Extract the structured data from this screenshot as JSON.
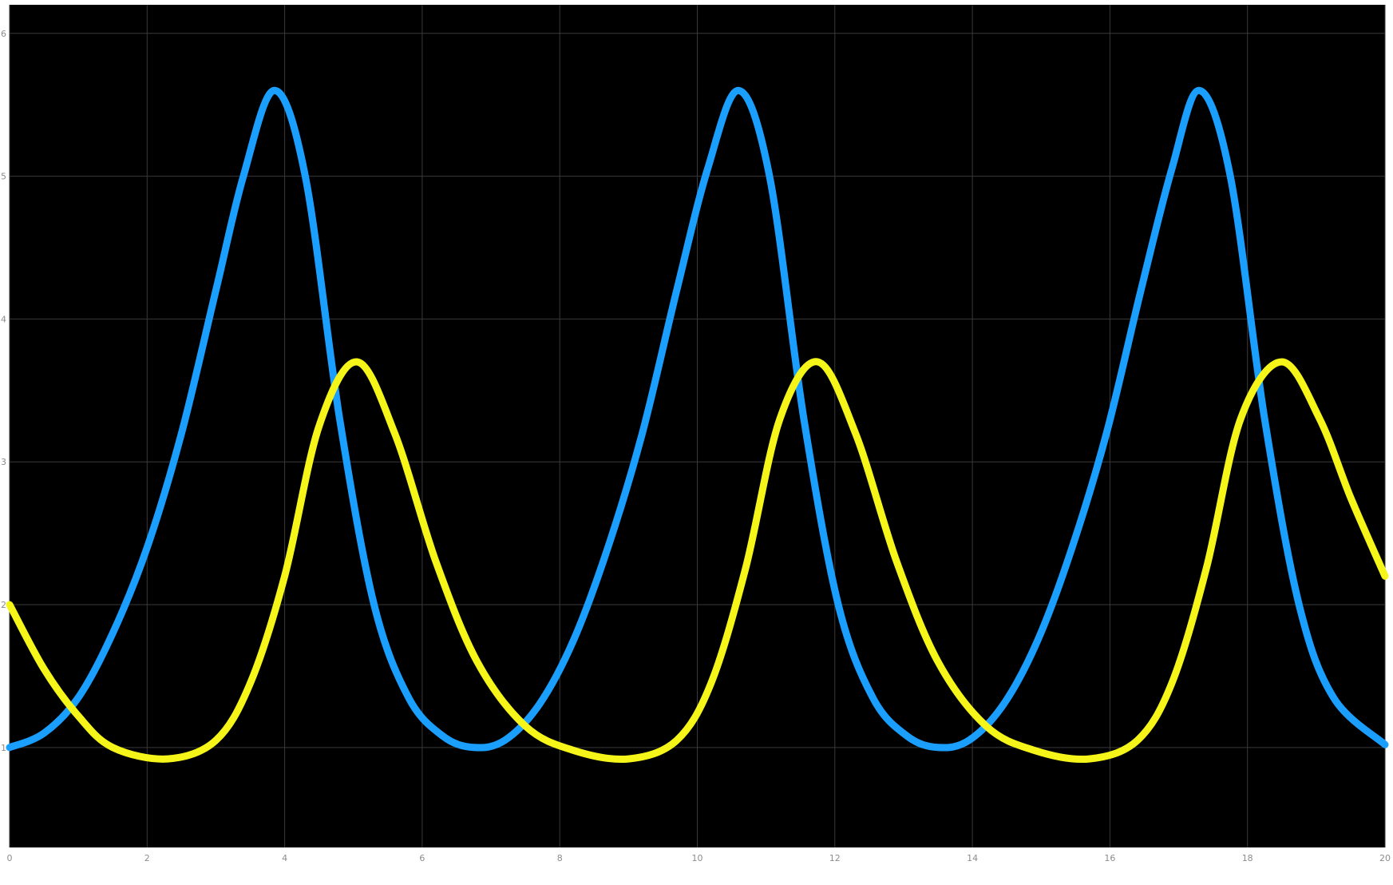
{
  "chart_data": {
    "type": "line",
    "title": "",
    "xlabel": "",
    "ylabel": "",
    "xlim": [
      0,
      20
    ],
    "ylim": [
      0.3,
      6.2
    ],
    "xticks": [
      "0",
      "2",
      "4",
      "6",
      "8",
      "10",
      "12",
      "14",
      "16",
      "18",
      "20"
    ],
    "yticks": [
      "1",
      "2",
      "3",
      "4",
      "5",
      "6"
    ],
    "grid": true,
    "background_color": "#000000",
    "series": [
      {
        "color": "#1a9fff",
        "x": [
          0,
          0.5,
          1,
          1.5,
          2,
          2.5,
          3,
          3.4,
          3.85,
          4.3,
          4.8,
          5.3,
          5.8,
          6.3,
          6.75,
          7.2,
          7.7,
          8.2,
          8.7,
          9.2,
          9.7,
          10.15,
          10.6,
          11.05,
          11.55,
          12.05,
          12.55,
          13.05,
          13.5,
          13.95,
          14.45,
          14.95,
          15.45,
          15.95,
          16.45,
          16.9,
          17.3,
          17.75,
          18.25,
          18.75,
          19.25,
          20
        ],
        "y": [
          1.0,
          1.1,
          1.35,
          1.8,
          2.4,
          3.2,
          4.2,
          5.0,
          5.6,
          5.0,
          3.3,
          2.0,
          1.35,
          1.08,
          1.0,
          1.05,
          1.3,
          1.75,
          2.4,
          3.2,
          4.2,
          5.05,
          5.6,
          5.0,
          3.3,
          2.0,
          1.35,
          1.08,
          1.0,
          1.05,
          1.3,
          1.75,
          2.4,
          3.2,
          4.2,
          5.05,
          5.6,
          5.0,
          3.3,
          2.0,
          1.35,
          1.02
        ]
      },
      {
        "color": "#f5f51a",
        "x": [
          0,
          0.5,
          1,
          1.5,
          2.3,
          3,
          3.5,
          4,
          4.5,
          5.05,
          5.6,
          6.2,
          6.8,
          7.5,
          8.2,
          9.0,
          9.7,
          10.2,
          10.7,
          11.2,
          11.75,
          12.3,
          12.9,
          13.5,
          14.2,
          14.9,
          15.7,
          16.4,
          16.9,
          17.4,
          17.9,
          18.5,
          19.05,
          19.5,
          20
        ],
        "y": [
          2.0,
          1.55,
          1.22,
          1.0,
          0.92,
          1.05,
          1.45,
          2.2,
          3.25,
          3.7,
          3.2,
          2.3,
          1.6,
          1.15,
          0.98,
          0.92,
          1.05,
          1.45,
          2.25,
          3.3,
          3.7,
          3.2,
          2.3,
          1.6,
          1.15,
          0.98,
          0.92,
          1.05,
          1.45,
          2.25,
          3.3,
          3.7,
          3.3,
          2.75,
          2.2
        ]
      }
    ]
  }
}
